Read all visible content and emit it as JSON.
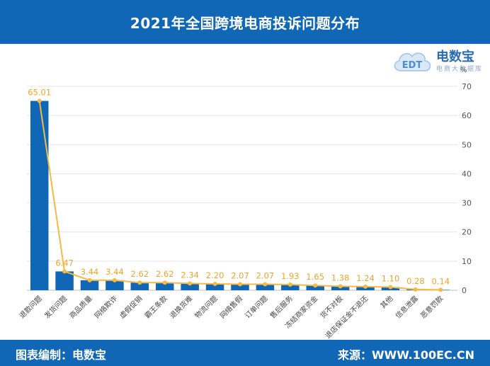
{
  "header": {
    "title": "2021年全国跨境电商投诉问题分布"
  },
  "logo": {
    "brand": "电数宝",
    "subtitle": "电商大数据库",
    "mark": "EDT"
  },
  "footer": {
    "source_left": "图表编制：电数宝",
    "source_right": "来源：WWW.100EC.CN"
  },
  "colors": {
    "bar": "#0f67b6",
    "line": "#f5b944",
    "label": "#f2a32a",
    "header": "#0f67b6"
  },
  "chart_data": {
    "type": "bar",
    "categories": [
      "退款问题",
      "发货问题",
      "商品质量",
      "网络欺诈",
      "虚假促销",
      "霸王条款",
      "退换货难",
      "物流问题",
      "网络售假",
      "订单问题",
      "售后服务",
      "冻结商家资金",
      "货不对板",
      "退店保证金不退还",
      "其他",
      "信息泄露",
      "恶意罚款"
    ],
    "values": [
      65.01,
      6.47,
      3.44,
      3.44,
      2.62,
      2.62,
      2.34,
      2.2,
      2.07,
      2.07,
      1.93,
      1.65,
      1.38,
      1.24,
      1.1,
      0.28,
      0.14
    ],
    "value_labels": [
      "65.01",
      "6.47",
      "3.44",
      "3.44",
      "2.62",
      "2.62",
      "2.34",
      "2.20",
      "2.07",
      "2.07",
      "1.93",
      "1.65",
      "1.38",
      "1.24",
      "1.10",
      "0.28",
      "0.14"
    ],
    "overlay": "line",
    "ylabel": "%",
    "y_ticks": [
      "0",
      "10",
      "20",
      "30",
      "40",
      "50",
      "60",
      "70"
    ],
    "ylim": [
      0,
      70
    ],
    "y_axis_side": "right",
    "grid": true
  }
}
